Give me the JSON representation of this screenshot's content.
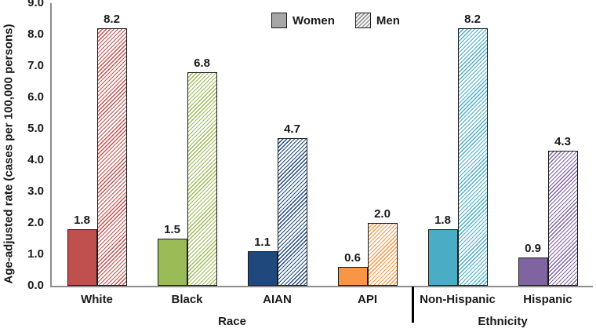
{
  "chart_data": {
    "type": "bar",
    "title": "",
    "ylabel": "Age-adjusted rate (cases per 100,000 persons)",
    "xlabel": "",
    "ylim": [
      0,
      9
    ],
    "ytick_labels": [
      "0.0",
      "1.0",
      "2.0",
      "3.0",
      "4.0",
      "5.0",
      "6.0",
      "7.0",
      "8.0",
      "9.0"
    ],
    "grid": "off",
    "legend_position": "top-center",
    "categories": [
      "White",
      "Black",
      "AIAN",
      "API",
      "Non-Hispanic",
      "Hispanic"
    ],
    "series": [
      {
        "name": "Women",
        "style": "solid",
        "values": [
          1.8,
          1.5,
          1.1,
          0.6,
          1.8,
          0.9
        ],
        "value_labels": [
          "1.8",
          "1.5",
          "1.1",
          "0.6",
          "1.8",
          "0.9"
        ]
      },
      {
        "name": "Men",
        "style": "hatched",
        "values": [
          8.2,
          6.8,
          4.7,
          2.0,
          8.2,
          4.3
        ],
        "value_labels": [
          "8.2",
          "6.8",
          "4.7",
          "2.0",
          "8.2",
          "4.3"
        ]
      }
    ],
    "category_colors": [
      "#c0504d",
      "#9bbb59",
      "#1f497d",
      "#f79646",
      "#4bacc6",
      "#8064a2"
    ],
    "xlabel_groups": [
      {
        "label": "Race",
        "categories": [
          "White",
          "Black",
          "AIAN",
          "API"
        ]
      },
      {
        "label": "Ethnicity",
        "categories": [
          "Non-Hispanic",
          "Hispanic"
        ]
      }
    ]
  },
  "colors": {
    "axis_line": "#8c8c8c",
    "bar_border": "#1a1a1a",
    "divider": "#000000",
    "text": "#1a1a1a",
    "legend_women_fill": "#a6a6a6",
    "legend_men_hatch_line": "#8c8c8c",
    "legend_men_hatch_bg": "#f0f0f0",
    "hatch_bg": "#ffffff"
  }
}
